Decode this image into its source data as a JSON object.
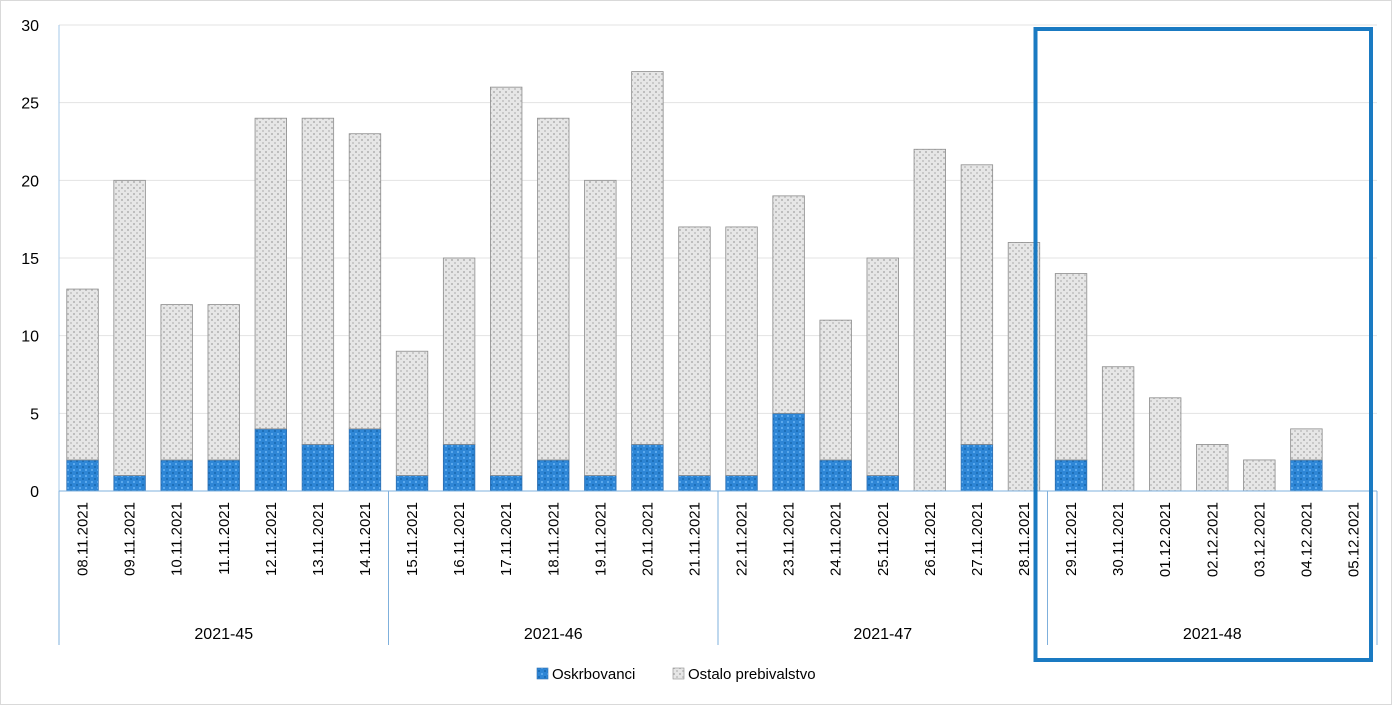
{
  "chart_data": {
    "type": "bar",
    "stacked": true,
    "categories": [
      "08.11.2021",
      "09.11.2021",
      "10.11.2021",
      "11.11.2021",
      "12.11.2021",
      "13.11.2021",
      "14.11.2021",
      "15.11.2021",
      "16.11.2021",
      "17.11.2021",
      "18.11.2021",
      "19.11.2021",
      "20.11.2021",
      "21.11.2021",
      "22.11.2021",
      "23.11.2021",
      "24.11.2021",
      "25.11.2021",
      "26.11.2021",
      "27.11.2021",
      "28.11.2021",
      "29.11.2021",
      "30.11.2021",
      "01.12.2021",
      "02.12.2021",
      "03.12.2021",
      "04.12.2021",
      "05.12.2021"
    ],
    "groups": [
      {
        "label": "2021-45",
        "start": 0,
        "count": 7
      },
      {
        "label": "2021-46",
        "start": 7,
        "count": 7
      },
      {
        "label": "2021-47",
        "start": 14,
        "count": 7
      },
      {
        "label": "2021-48",
        "start": 21,
        "count": 7
      }
    ],
    "series": [
      {
        "name": "Oskrbovanci",
        "color": "#2e86d6",
        "values": [
          2,
          1,
          2,
          2,
          4,
          3,
          4,
          1,
          3,
          1,
          2,
          1,
          3,
          1,
          1,
          5,
          2,
          1,
          0,
          3,
          0,
          2,
          0,
          0,
          0,
          0,
          2,
          0
        ]
      },
      {
        "name": "Ostalo prebivalstvo",
        "color": "#d9d9d9",
        "values": [
          11,
          19,
          10,
          10,
          20,
          21,
          19,
          8,
          12,
          25,
          22,
          19,
          24,
          16,
          16,
          14,
          9,
          14,
          22,
          18,
          16,
          12,
          8,
          6,
          3,
          2,
          2,
          0
        ]
      }
    ],
    "ylim": [
      0,
      30
    ],
    "yticks": [
      0,
      5,
      10,
      15,
      20,
      25,
      30
    ],
    "grid": true,
    "legend": "bottom-center",
    "highlight": {
      "group": "2021-48",
      "color": "#1a7ac2"
    }
  }
}
